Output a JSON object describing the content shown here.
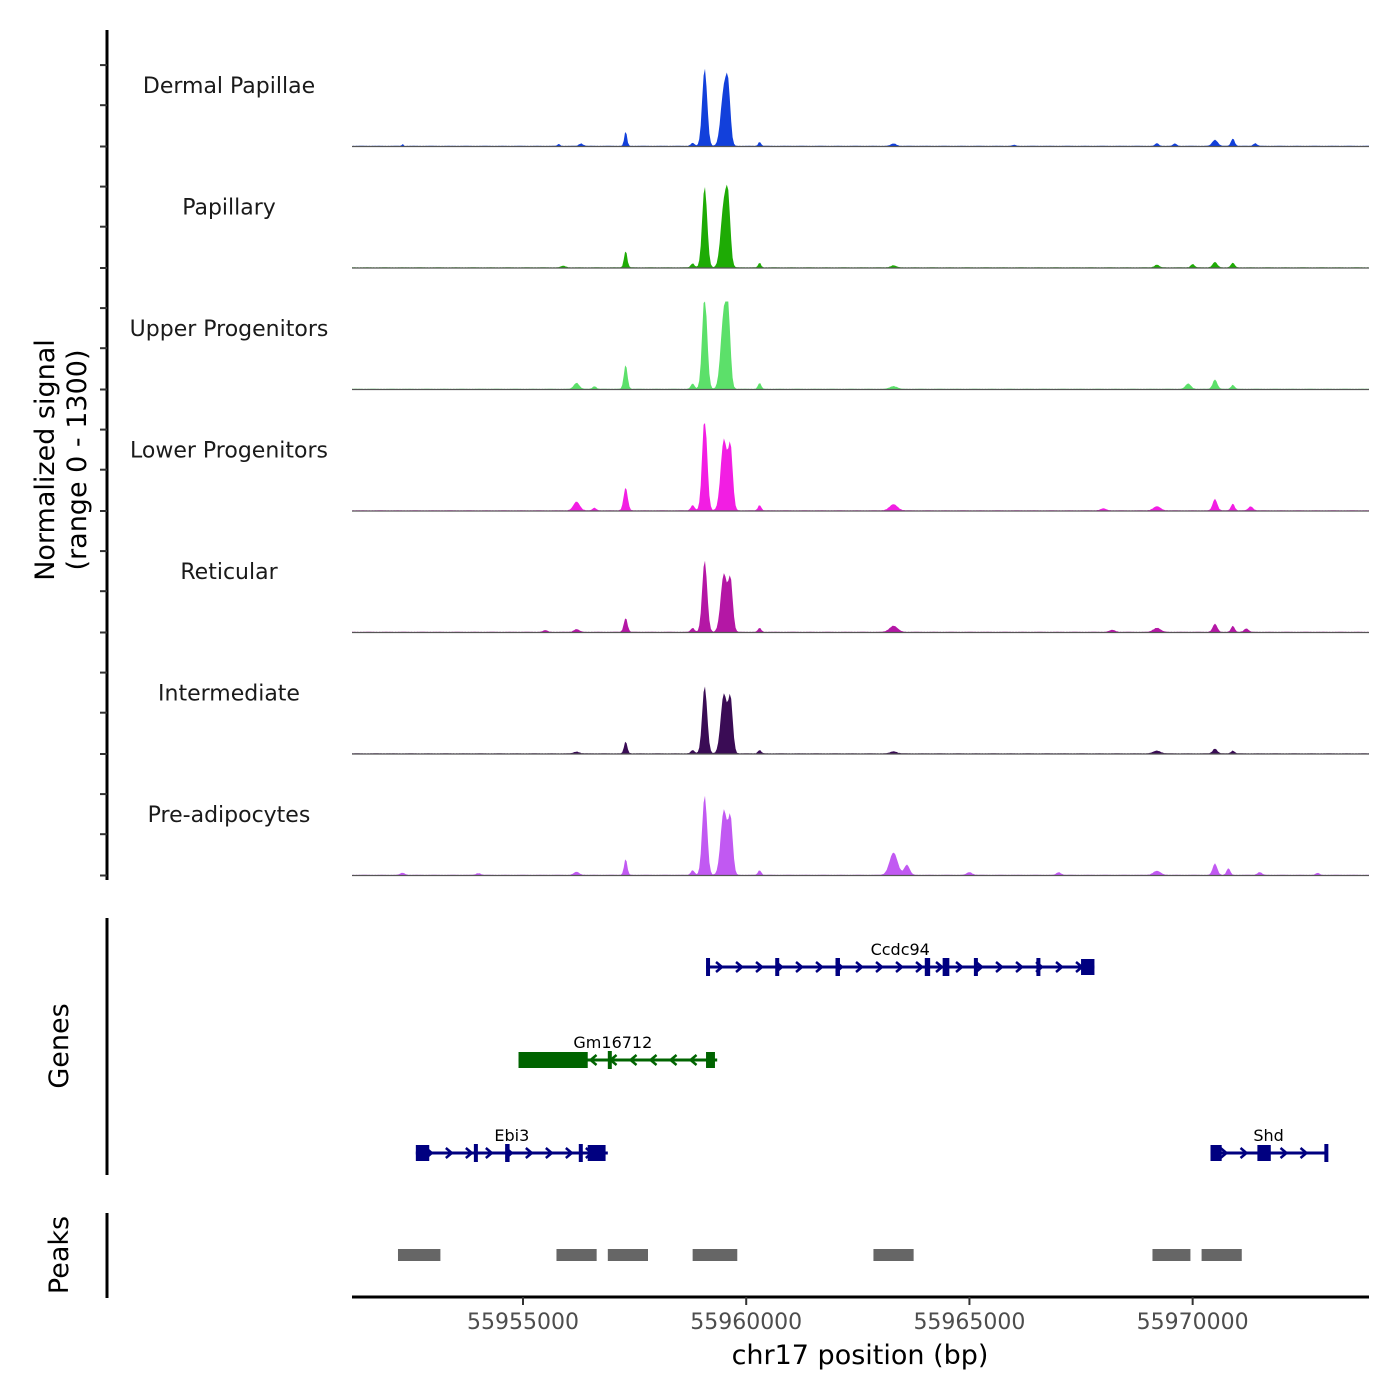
{
  "chart_data": {
    "type": "area",
    "title": "",
    "xlabel": "chr17 position (bp)",
    "ylabel": "Normalized signal\n(range 0 - 1300)",
    "ylabel_lines": [
      "Normalized signal",
      "(range 0 - 1300)"
    ],
    "xlim": [
      55951170,
      55973950
    ],
    "ylim": [
      0,
      1300
    ],
    "x_ticks": [
      55955000,
      55960000,
      55965000,
      55970000
    ],
    "x_tick_labels": [
      "55955000",
      "55960000",
      "55965000",
      "55970000"
    ],
    "grid": false,
    "legend": "none",
    "tracks": [
      {
        "name": "Dermal Papillae",
        "color": "#1240DB",
        "peaks": [
          [
            55952300,
            40,
            12
          ],
          [
            55955800,
            30,
            25
          ],
          [
            55956300,
            35,
            45
          ],
          [
            55957300,
            220,
            30
          ],
          [
            55958800,
            45,
            40
          ],
          [
            55959070,
            1150,
            55
          ],
          [
            55959500,
            820,
            70
          ],
          [
            55959600,
            700,
            50
          ],
          [
            55960300,
            60,
            30
          ],
          [
            55963300,
            35,
            60
          ],
          [
            55966000,
            15,
            40
          ],
          [
            55969200,
            40,
            40
          ],
          [
            55969600,
            35,
            40
          ],
          [
            55970500,
            90,
            60
          ],
          [
            55970900,
            110,
            40
          ],
          [
            55971400,
            40,
            40
          ]
        ]
      },
      {
        "name": "Papillary",
        "color": "#1EAB05",
        "peaks": [
          [
            55955900,
            25,
            50
          ],
          [
            55957300,
            250,
            35
          ],
          [
            55958800,
            60,
            40
          ],
          [
            55959070,
            1200,
            55
          ],
          [
            55959500,
            920,
            70
          ],
          [
            55959600,
            800,
            50
          ],
          [
            55960300,
            70,
            30
          ],
          [
            55963300,
            30,
            60
          ],
          [
            55969200,
            40,
            50
          ],
          [
            55970000,
            50,
            40
          ],
          [
            55970500,
            80,
            50
          ],
          [
            55970900,
            70,
            40
          ]
        ]
      },
      {
        "name": "Upper Progenitors",
        "color": "#5CE06A",
        "peaks": [
          [
            55956200,
            90,
            60
          ],
          [
            55956600,
            40,
            40
          ],
          [
            55957300,
            360,
            40
          ],
          [
            55958800,
            80,
            40
          ],
          [
            55959070,
            1400,
            55
          ],
          [
            55959500,
            1100,
            70
          ],
          [
            55959600,
            900,
            50
          ],
          [
            55960300,
            90,
            35
          ],
          [
            55963300,
            40,
            80
          ],
          [
            55969900,
            80,
            60
          ],
          [
            55970500,
            140,
            50
          ],
          [
            55970900,
            60,
            40
          ]
        ]
      },
      {
        "name": "Lower Progenitors",
        "color": "#F21EE3",
        "peaks": [
          [
            55956200,
            130,
            70
          ],
          [
            55956600,
            40,
            40
          ],
          [
            55957300,
            340,
            45
          ],
          [
            55958800,
            80,
            40
          ],
          [
            55959070,
            1400,
            55
          ],
          [
            55959500,
            1050,
            70
          ],
          [
            55959650,
            900,
            50
          ],
          [
            55960300,
            80,
            35
          ],
          [
            55963300,
            90,
            90
          ],
          [
            55968000,
            30,
            60
          ],
          [
            55969200,
            60,
            80
          ],
          [
            55970500,
            170,
            50
          ],
          [
            55970900,
            100,
            40
          ],
          [
            55971300,
            60,
            50
          ]
        ]
      },
      {
        "name": "Reticular",
        "color": "#B417A5",
        "peaks": [
          [
            55955500,
            25,
            50
          ],
          [
            55956200,
            40,
            60
          ],
          [
            55957300,
            210,
            40
          ],
          [
            55958800,
            60,
            40
          ],
          [
            55959070,
            1060,
            55
          ],
          [
            55959500,
            860,
            70
          ],
          [
            55959650,
            740,
            50
          ],
          [
            55960300,
            60,
            35
          ],
          [
            55963300,
            90,
            90
          ],
          [
            55968200,
            30,
            60
          ],
          [
            55969200,
            60,
            80
          ],
          [
            55970500,
            120,
            50
          ],
          [
            55970900,
            90,
            40
          ],
          [
            55971200,
            50,
            50
          ]
        ]
      },
      {
        "name": "Intermediate",
        "color": "#3A0C55",
        "peaks": [
          [
            55956200,
            25,
            60
          ],
          [
            55957300,
            180,
            35
          ],
          [
            55958800,
            50,
            40
          ],
          [
            55959070,
            1000,
            55
          ],
          [
            55959500,
            880,
            70
          ],
          [
            55959650,
            780,
            50
          ],
          [
            55960300,
            50,
            35
          ],
          [
            55963300,
            30,
            70
          ],
          [
            55969200,
            40,
            80
          ],
          [
            55970500,
            70,
            50
          ],
          [
            55970900,
            40,
            40
          ]
        ]
      },
      {
        "name": "Pre-adipocytes",
        "color": "#C159F2",
        "peaks": [
          [
            55952300,
            30,
            50
          ],
          [
            55954000,
            25,
            50
          ],
          [
            55956200,
            45,
            60
          ],
          [
            55957300,
            240,
            35
          ],
          [
            55958800,
            70,
            40
          ],
          [
            55959070,
            1180,
            55
          ],
          [
            55959500,
            960,
            70
          ],
          [
            55959650,
            800,
            50
          ],
          [
            55960300,
            70,
            35
          ],
          [
            55963300,
            330,
            90
          ],
          [
            55963600,
            150,
            60
          ],
          [
            55965000,
            40,
            60
          ],
          [
            55967000,
            40,
            50
          ],
          [
            55969200,
            60,
            80
          ],
          [
            55970500,
            170,
            50
          ],
          [
            55970800,
            100,
            40
          ],
          [
            55971500,
            40,
            50
          ],
          [
            55972800,
            30,
            40
          ]
        ]
      }
    ],
    "track_baseline_color": "#555555",
    "genes": [
      {
        "name": "Ccdc94",
        "strand": "+",
        "color": "#000080",
        "row": 1,
        "start": 55959100,
        "end": 55967800,
        "exons": [
          [
            55959100,
            55959150
          ],
          [
            55960650,
            55960720
          ],
          [
            55962000,
            55962100
          ],
          [
            55964000,
            55964120
          ],
          [
            55964400,
            55964550
          ],
          [
            55965100,
            55965150
          ],
          [
            55966500,
            55966580
          ],
          [
            55967500,
            55967800
          ]
        ]
      },
      {
        "name": "Gm16712",
        "strand": "-",
        "color": "#006400",
        "row": 2,
        "start": 55954900,
        "end": 55959350,
        "exons": [
          [
            55954900,
            55956450
          ],
          [
            55956900,
            55956980
          ],
          [
            55959100,
            55959300
          ]
        ]
      },
      {
        "name": "Ebi3",
        "strand": "+",
        "color": "#000080",
        "row": 3,
        "start": 55952600,
        "end": 55956900,
        "exons": [
          [
            55952600,
            55952900
          ],
          [
            55953900,
            55953980
          ],
          [
            55954600,
            55954700
          ],
          [
            55956250,
            55956320
          ],
          [
            55956450,
            55956850
          ]
        ]
      },
      {
        "name": "Shd",
        "strand": "+",
        "color": "#000080",
        "row": 3,
        "start": 55970400,
        "end": 55973000,
        "exons": [
          [
            55970400,
            55970650
          ],
          [
            55971450,
            55971750
          ],
          [
            55972950,
            55973000
          ]
        ]
      }
    ],
    "genes_label": "Genes",
    "peaks_label": "Peaks",
    "peak_color": "#666666",
    "peak_regions": [
      [
        55952200,
        55953150
      ],
      [
        55955750,
        55956650
      ],
      [
        55956900,
        55957800
      ],
      [
        55958800,
        55959800
      ],
      [
        55962850,
        55963750
      ],
      [
        55969100,
        55969950
      ],
      [
        55970200,
        55971100
      ]
    ]
  }
}
